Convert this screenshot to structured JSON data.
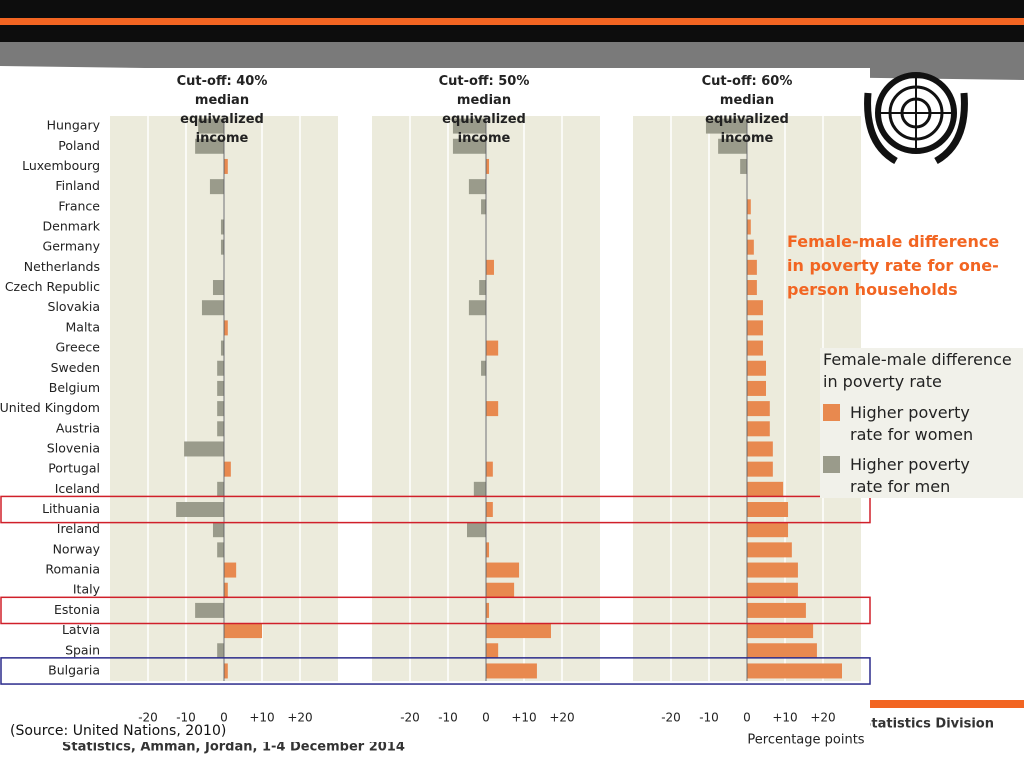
{
  "slide": {
    "annotation": "Female-male difference in poverty rate for one-person households",
    "source": "(Source: United Nations, 2010)",
    "footer_right": "Statistics Division",
    "footer_left": "Statistics, Amman, Jordan, 1-4 December 2014"
  },
  "chart_data": {
    "type": "bar",
    "orientation": "horizontal",
    "categories": [
      "Hungary",
      "Poland",
      "Luxembourg",
      "Finland",
      "France",
      "Denmark",
      "Germany",
      "Netherlands",
      "Czech Republic",
      "Slovakia",
      "Malta",
      "Greece",
      "Sweden",
      "Belgium",
      "United Kingdom",
      "Austria",
      "Slovenia",
      "Portugal",
      "Iceland",
      "Lithuania",
      "Ireland",
      "Norway",
      "Romania",
      "Italy",
      "Estonia",
      "Latvia",
      "Spain",
      "Bulgaria"
    ],
    "series": [
      {
        "name": "Cut-off: 40% median equivalized income",
        "values": [
          -6.8,
          -7.6,
          1,
          -3.7,
          0,
          -0.8,
          -0.8,
          0,
          -2.9,
          -5.8,
          1,
          -0.8,
          -1.8,
          -1.8,
          -1.8,
          -1.8,
          -10.5,
          1.8,
          -1.8,
          -12.6,
          -2.9,
          -1.8,
          3.2,
          1,
          -7.6,
          10,
          -1.8,
          1
        ]
      },
      {
        "name": "Cut-off: 50% median equivalized income",
        "values": [
          -8.7,
          -8.7,
          0.8,
          -4.5,
          -1.3,
          0,
          0,
          2.1,
          -1.8,
          -4.5,
          0,
          3.2,
          -1.3,
          0,
          3.2,
          0,
          0,
          1.8,
          -3.2,
          1.8,
          -5,
          0.8,
          8.7,
          7.4,
          0.8,
          17.1,
          3.2,
          13.4
        ]
      },
      {
        "name": "Cut-off: 60% median equivalized income",
        "values": [
          -10.8,
          -7.6,
          -1.8,
          0,
          1,
          1,
          1.8,
          2.6,
          2.6,
          4.2,
          4.2,
          4.2,
          5,
          5,
          6,
          6,
          6.8,
          6.8,
          9.5,
          10.8,
          10.8,
          11.8,
          13.4,
          13.4,
          15.5,
          17.4,
          18.4,
          25
        ]
      }
    ],
    "xlim": [
      -30,
      30
    ],
    "xticks": [
      -20,
      -10,
      0,
      {
        "value": 10,
        "label": "+10"
      },
      {
        "value": 20,
        "label": "+20"
      }
    ],
    "x_label": "Percentage points",
    "grid": true,
    "legend": {
      "title": "Female-male difference in poverty rate",
      "items": [
        {
          "label": "Higher poverty rate for women",
          "color": "#e8894f"
        },
        {
          "label": "Higher poverty rate for men",
          "color": "#9a9b8b"
        }
      ]
    }
  }
}
